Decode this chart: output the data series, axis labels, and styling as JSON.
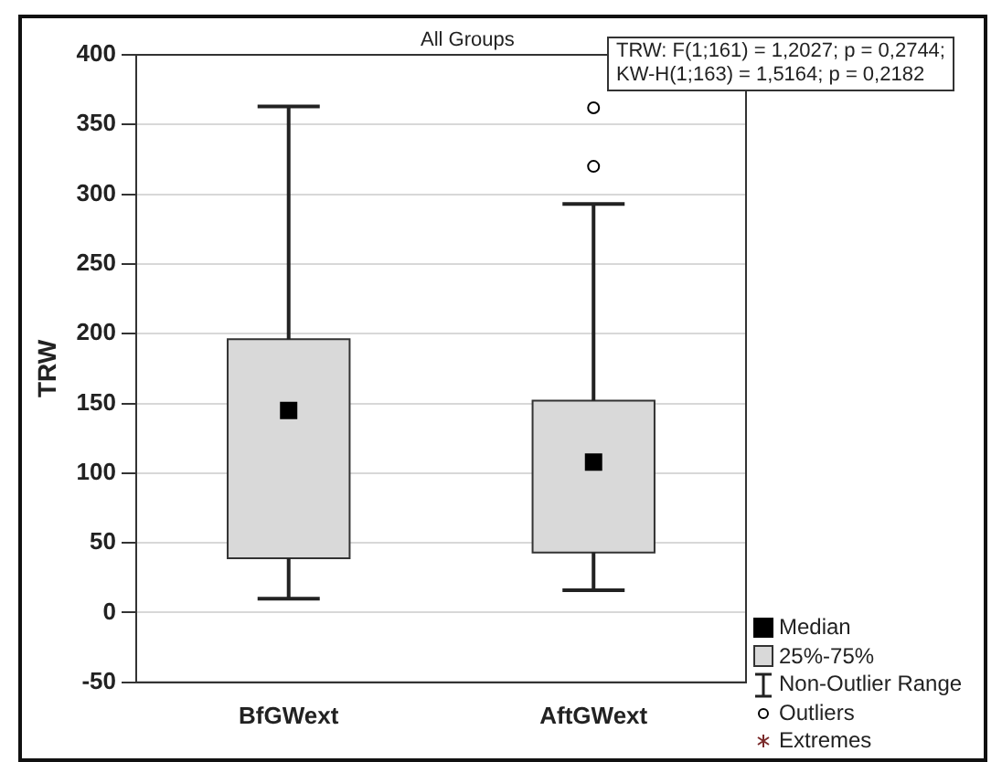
{
  "chart_data": {
    "type": "box",
    "title": "All Groups",
    "ylabel": "TRW",
    "categories": [
      "BfGWext",
      "AftGWext"
    ],
    "series": [
      {
        "color": "#d9d9d9",
        "boxes": [
          {
            "low": 10,
            "q1": 39,
            "median": 145,
            "q3": 196,
            "high": 363
          },
          {
            "low": 16,
            "q1": 43,
            "median": 108,
            "q3": 152,
            "high": 293,
            "outliers": [
              320,
              362
            ]
          }
        ]
      }
    ],
    "ylim": [
      -50,
      400
    ],
    "yticks": [
      -50,
      0,
      50,
      100,
      150,
      200,
      250,
      300,
      350,
      400
    ],
    "grid": "y",
    "marker": "square",
    "annotations": [
      "TRW:   F(1;161) = 1,2027; p = 0,2744;",
      "KW-H(1;163) = 1,5164; p = 0,2182",
      "Median",
      "25%-75%",
      "Non-Outlier Range",
      "Outliers",
      "Extremes"
    ]
  }
}
